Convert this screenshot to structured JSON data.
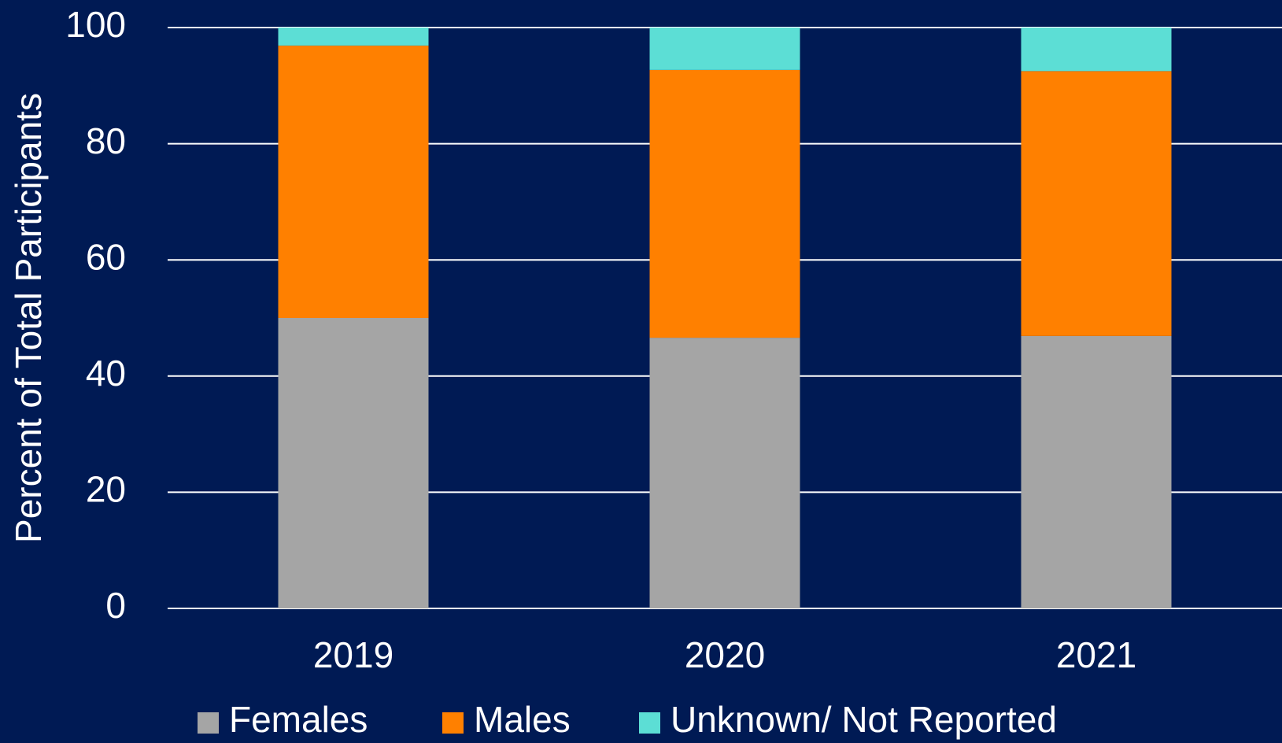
{
  "chart_data": {
    "type": "stacked_bar",
    "y_label": "Percent of Total Participants",
    "categories": [
      "2019",
      "2020",
      "2021"
    ],
    "series": [
      {
        "name": "Females",
        "color": "#a5a5a5",
        "values": [
          50.0,
          46.6,
          46.9
        ]
      },
      {
        "name": "Males",
        "color": "#ff8000",
        "values": [
          46.9,
          46.1,
          45.6
        ]
      },
      {
        "name": "Unknown/ Not Reported",
        "color": "#5cded5",
        "values": [
          3.1,
          7.3,
          7.5
        ]
      }
    ],
    "ylim": [
      0,
      100
    ],
    "yticks": [
      0,
      20,
      40,
      60,
      80,
      100
    ],
    "grid": true,
    "legend": "bottom"
  }
}
